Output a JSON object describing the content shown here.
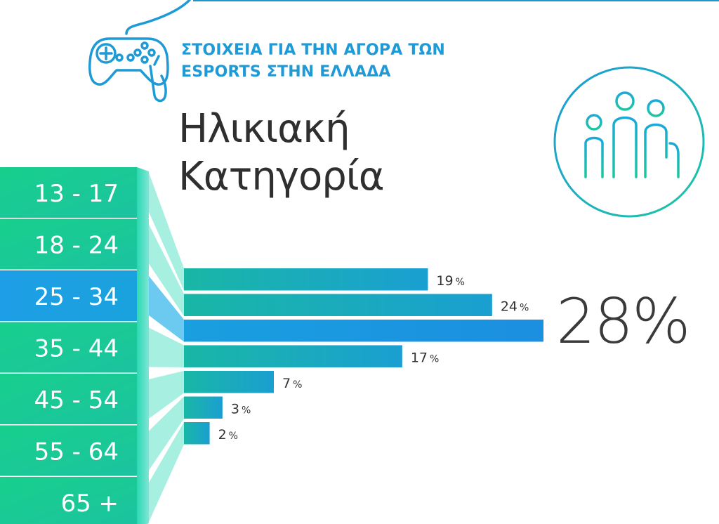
{
  "header": {
    "title_line1": "ΣΤΟΙΧΕΙΑ ΓΙΑ ΤΗΝ ΑΓΟΡΑ ΤΩΝ",
    "title_line2": "ESPORTS ΣΤΗΝ ΕΛΛΑΔΑ"
  },
  "section": {
    "title_line1": "Ηλικιακή",
    "title_line2": "Κατηγορία"
  },
  "icons": {
    "gamepad": "gamepad-icon",
    "people": "people-group-icon"
  },
  "colors": {
    "accent": "#1e9ad6",
    "highlight": "#1e9be3",
    "highlight_light": "#5fc6ea",
    "green": "#19c98a",
    "teal": "#19b5a5",
    "text_dark": "#333333"
  },
  "chart_data": {
    "type": "bar",
    "orientation": "horizontal",
    "categories": [
      "13 - 17",
      "18 - 24",
      "25 - 34",
      "35 - 44",
      "45 - 54",
      "55 - 64",
      "65 +"
    ],
    "values": [
      19,
      24,
      28,
      17,
      7,
      3,
      2
    ],
    "value_labels": [
      "19",
      "24",
      "28",
      "17",
      "7",
      "3",
      "2"
    ],
    "unit": "%",
    "highlight_index": 2,
    "highlight_label": "28%",
    "xlim": [
      0,
      28
    ],
    "grid": false,
    "legend": "none"
  }
}
